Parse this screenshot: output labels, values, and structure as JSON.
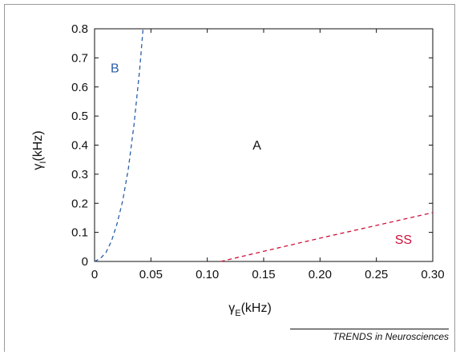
{
  "chart_data": {
    "type": "line",
    "xlabel": "γ",
    "xlabel_sub": "E",
    "xlabel_unit": "(kHz)",
    "ylabel": "γ",
    "ylabel_sub": "I",
    "ylabel_unit": "(kHz)",
    "xlim": [
      0,
      0.3
    ],
    "ylim": [
      0,
      0.8
    ],
    "x_ticks": [
      0,
      0.05,
      0.1,
      0.15,
      0.2,
      0.25,
      0.3
    ],
    "x_tick_labels": [
      "0",
      "0.05",
      "0.10",
      "0.15",
      "0.20",
      "0.25",
      "0.30"
    ],
    "y_ticks": [
      0,
      0.1,
      0.2,
      0.3,
      0.4,
      0.5,
      0.6,
      0.7,
      0.8
    ],
    "y_tick_labels": [
      "0",
      "0.1",
      "0.2",
      "0.3",
      "0.4",
      "0.5",
      "0.6",
      "0.7",
      "0.8"
    ],
    "grid": false,
    "series": [
      {
        "name": "",
        "color": "#2b5ea8",
        "style": "dashed",
        "x": [
          0.0,
          0.005,
          0.01,
          0.015,
          0.02,
          0.025,
          0.03,
          0.035,
          0.04,
          0.043
        ],
        "y": [
          0.0,
          0.01,
          0.03,
          0.07,
          0.13,
          0.21,
          0.32,
          0.47,
          0.66,
          0.8
        ]
      },
      {
        "name": "",
        "color": "#d0103a",
        "style": "dashed",
        "x": [
          0.112,
          0.15,
          0.2,
          0.25,
          0.3
        ],
        "y": [
          0.0,
          0.035,
          0.08,
          0.124,
          0.168
        ]
      }
    ],
    "annotations": [
      {
        "text": "B",
        "x": 0.018,
        "y": 0.65,
        "color": "#2b5ea8"
      },
      {
        "text": "A",
        "x": 0.144,
        "y": 0.385,
        "color": "#111111"
      },
      {
        "text": "SS",
        "x": 0.274,
        "y": 0.06,
        "color": "#d0103a"
      }
    ]
  },
  "credit": "TRENDS in Neurosciences"
}
